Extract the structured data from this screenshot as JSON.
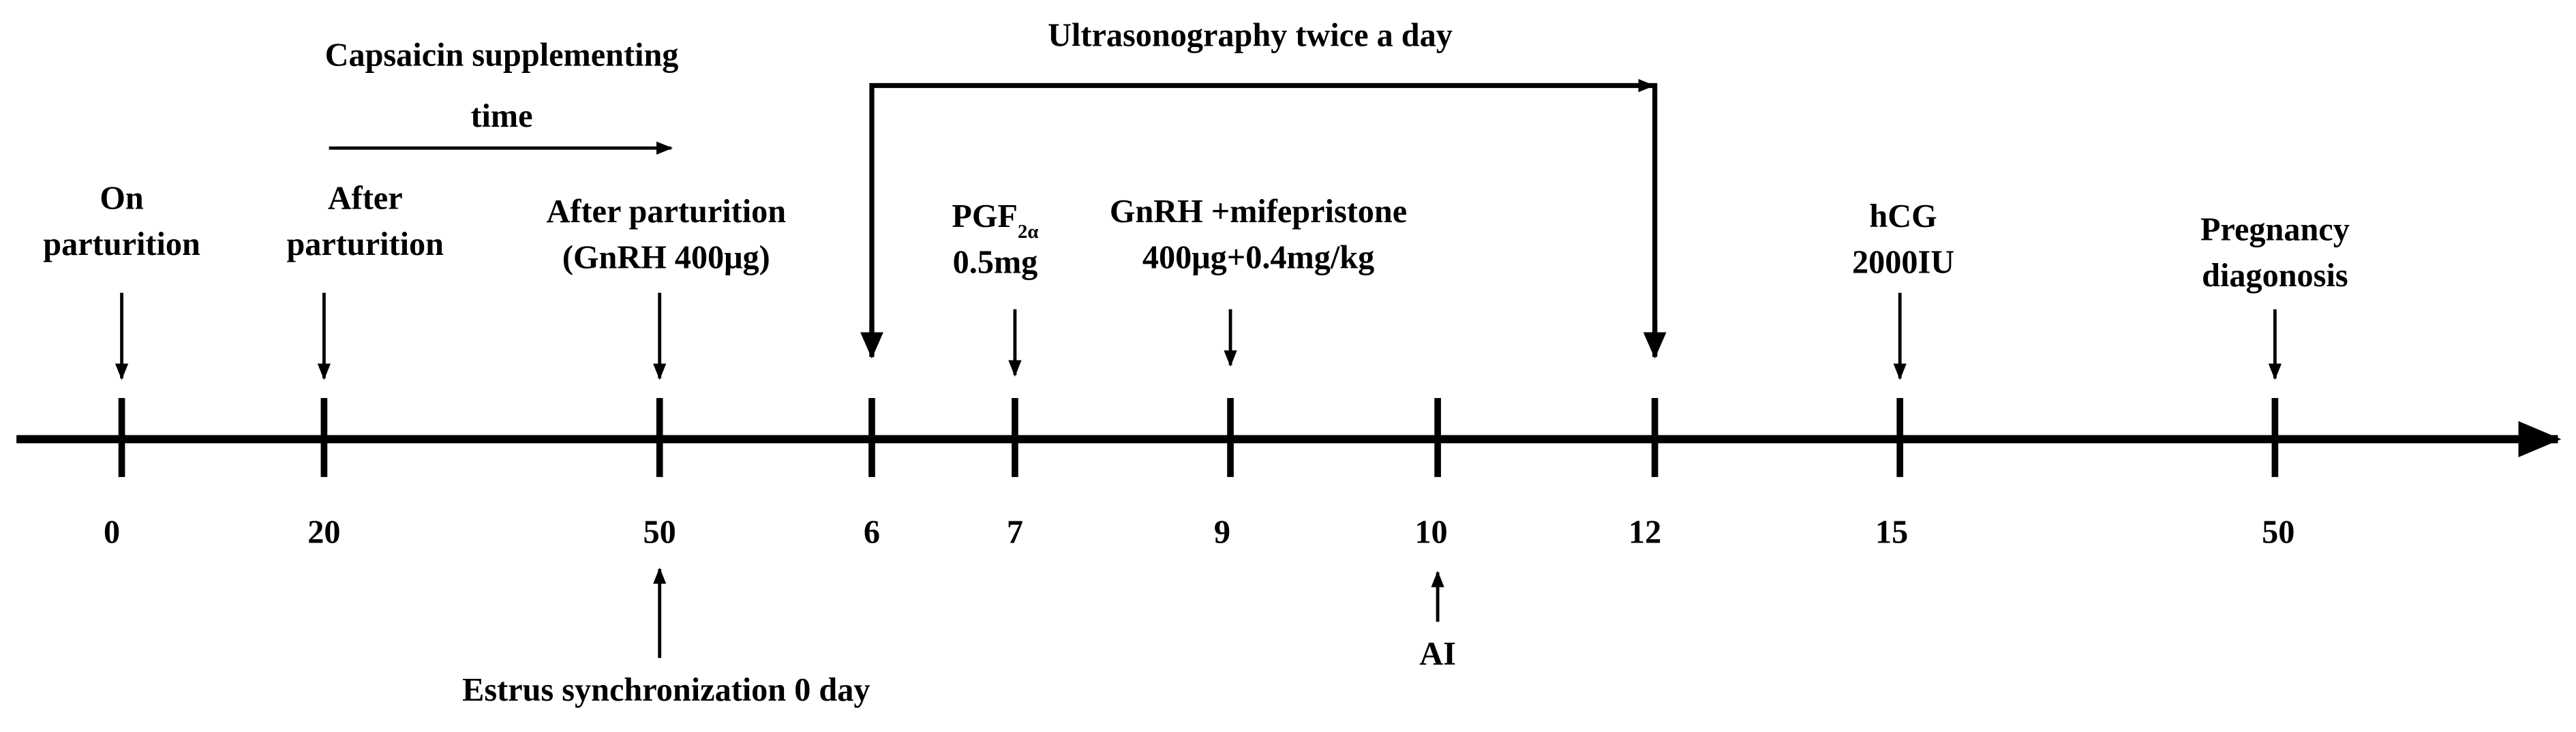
{
  "header": {
    "capsaicin": [
      "Capsaicin supplementing",
      "time"
    ],
    "ultrasonography": "Ultrasonography twice a day"
  },
  "events": [
    {
      "lines": [
        "On",
        "parturition"
      ]
    },
    {
      "lines": [
        "After",
        "parturition"
      ]
    },
    {
      "lines": [
        "After  parturition",
        "(GnRH  400μg)"
      ]
    },
    {
      "lines": [
        "PGF",
        "0.5mg"
      ],
      "subscript": "2α"
    },
    {
      "lines": [
        "GnRH +mifepristone",
        "400μg+0.4mg/kg"
      ]
    },
    {
      "lines": [
        "hCG",
        "2000IU"
      ]
    },
    {
      "lines": [
        "Pregnancy",
        "diagonosis"
      ]
    }
  ],
  "ticks": [
    "0",
    "20",
    "50",
    "6",
    "7",
    "9",
    "10",
    "12",
    "15",
    "50"
  ],
  "bottom_events": [
    {
      "label": "Estrus synchronization 0 day"
    },
    {
      "label": "AI"
    }
  ]
}
